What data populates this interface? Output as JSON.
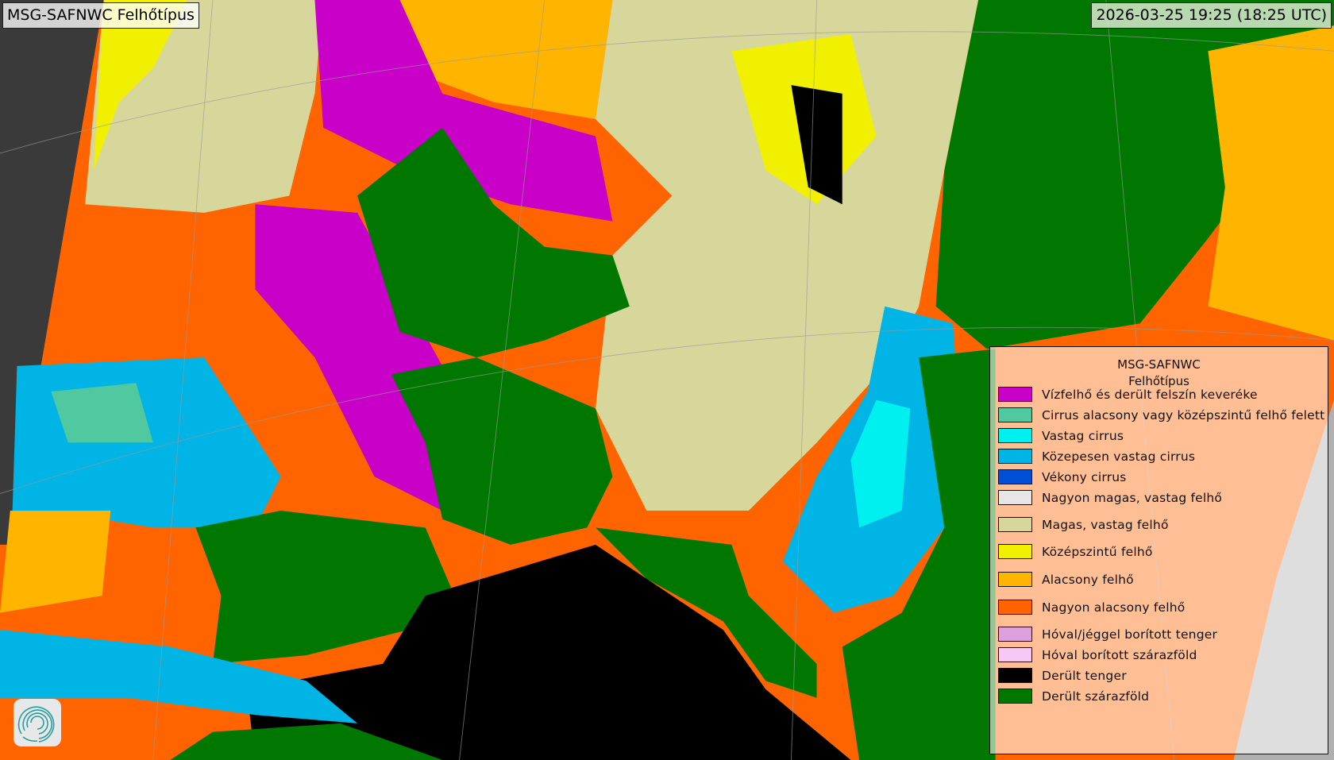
{
  "header": {
    "title": "MSG-SAFNWC Felhőtípus",
    "timestamp": "2026-03-25 19:25 (18:25 UTC)"
  },
  "legend": {
    "title_line1": "MSG-SAFNWC",
    "title_line2": "Felhőtípus",
    "items": [
      {
        "label": "Vízfelhő és derült felszín keveréke",
        "color": "#c800c8"
      },
      {
        "label": "Cirrus alacsony vagy középszintű felhő felett",
        "color": "#50c8a0"
      },
      {
        "label": "Vastag cirrus",
        "color": "#00f0f0"
      },
      {
        "label": "Közepesen vastag cirrus",
        "color": "#00b4e6"
      },
      {
        "label": "Vékony cirrus",
        "color": "#0050d7"
      },
      {
        "label": "Nagyon magas, vastag felhő",
        "color": "#e6e6e6"
      },
      {
        "label": "Magas, vastag felhő",
        "color": "#d7d79b"
      },
      {
        "label": "Középszintű felhő",
        "color": "#f0f000"
      },
      {
        "label": "Alacsony felhő",
        "color": "#ffb400"
      },
      {
        "label": "Nagyon alacsony felhő",
        "color": "#ff6400"
      },
      {
        "label": "Hóval/jéggel borított tenger",
        "color": "#dca0dc"
      },
      {
        "label": "Hóval borított szárazföld",
        "color": "#f5c8f5"
      },
      {
        "label": "Derült tenger",
        "color": "#000000"
      },
      {
        "label": "Derült szárazföld",
        "color": "#007800"
      }
    ]
  },
  "logo": {
    "icon": "swirl-logo-icon"
  }
}
